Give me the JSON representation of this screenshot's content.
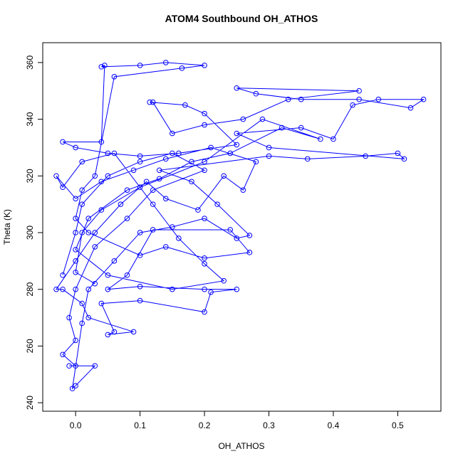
{
  "chart_data": {
    "type": "line",
    "title": "ATOM4 Southbound OH_ATHOS",
    "x_label": "OH_ATHOS",
    "y_label": "Theta (K)",
    "xlim": [
      -0.051,
      0.567
    ],
    "ylim": [
      237,
      367
    ],
    "xticks": [
      {
        "value": 0,
        "label": "0.0"
      },
      0.1,
      0.2,
      0.3,
      0.4,
      0.5
    ],
    "yticks": [
      240,
      260,
      280,
      300,
      320,
      340,
      360
    ],
    "markers": true,
    "series": [
      {
        "color": "#0000ff",
        "x": [
          -0.02,
          0.0,
          0.01,
          0.05,
          0.1,
          0.15,
          0.2,
          0.12,
          0.08,
          0.03,
          0.0,
          -0.01,
          0.0,
          -0.02,
          0.0,
          -0.01,
          0.03,
          0.0,
          -0.005,
          0.01,
          0.02,
          0.06,
          0.1,
          0.15,
          0.2,
          0.25,
          0.27,
          0.22,
          0.18,
          0.13,
          0.3,
          0.36,
          0.45,
          0.5,
          0.51,
          0.3,
          0.25,
          0.35,
          0.4,
          0.43,
          0.47,
          0.54,
          0.52,
          0.44,
          0.35,
          0.28,
          0.25,
          0.44,
          0.33,
          0.26,
          0.2,
          0.15,
          0.12,
          0.115,
          0.17,
          0.2,
          0.25,
          0.16,
          0.1,
          0.05,
          0.0,
          -0.02,
          0.04,
          0.045,
          0.04,
          0.1,
          0.14,
          0.2,
          0.165,
          0.06,
          0.03,
          0.01,
          0.0,
          0.02,
          0.1,
          0.14,
          0.2,
          0.27,
          0.24,
          0.12,
          0.08,
          0.05,
          0.1,
          0.2,
          0.25,
          0.21,
          0.2,
          0.1,
          0.04,
          0.06,
          0.05,
          0.09,
          0.02,
          0.01,
          -0.02,
          -0.03,
          0.0,
          0.03,
          0.07,
          0.11,
          0.14,
          0.19,
          0.23,
          0.26,
          0.28,
          0.21,
          0.14,
          0.09,
          0.04,
          0.0,
          -0.03,
          -0.02,
          0.01,
          0.06,
          0.12,
          0.16,
          0.2,
          0.23,
          0.15,
          0.05,
          0.0,
          0.02,
          0.08,
          0.13,
          0.18,
          0.24,
          0.32,
          0.38,
          0.29,
          0.2,
          0.1,
          0.04,
          0.01,
          0.0,
          0.03
        ],
        "values": [
          285,
          300,
          310,
          320,
          325,
          328,
          322,
          315,
          305,
          295,
          280,
          270,
          262,
          257,
          253,
          253,
          253,
          246,
          245,
          268,
          280,
          290,
          300,
          302,
          305,
          298,
          299,
          310,
          318,
          322,
          327,
          326,
          327,
          328,
          326,
          330,
          335,
          337,
          333,
          345,
          347,
          347,
          344,
          347,
          347,
          349,
          351,
          350,
          347,
          340,
          338,
          335,
          346,
          346,
          345,
          342,
          331,
          328,
          327,
          328,
          330,
          332,
          332,
          359,
          358.5,
          359,
          360,
          359,
          358,
          355,
          320,
          315,
          305,
          300,
          292,
          295,
          291,
          293,
          301,
          301,
          285,
          280,
          281,
          280,
          280,
          279,
          272,
          276,
          275,
          265,
          264,
          265,
          270,
          275,
          280,
          280,
          290,
          300,
          310,
          318,
          312,
          308,
          320,
          315,
          325,
          330,
          326,
          322,
          318,
          312,
          320,
          316,
          325,
          328,
          310,
          298,
          289,
          283,
          280,
          285,
          294,
          305,
          315,
          319,
          325,
          328,
          337,
          333,
          340,
          325,
          316,
          308,
          300,
          286,
          282
        ]
      }
    ]
  }
}
